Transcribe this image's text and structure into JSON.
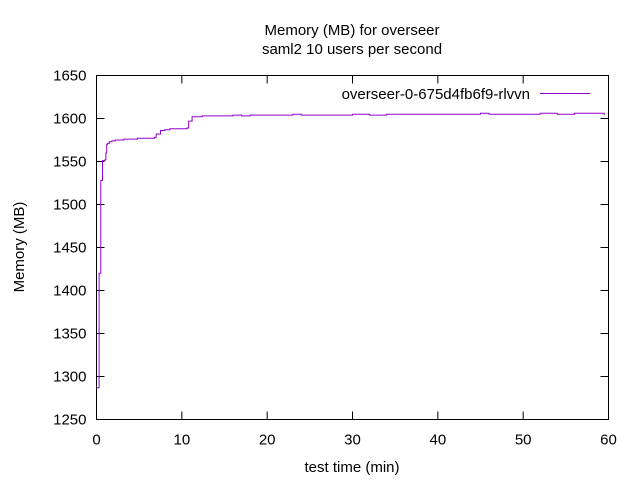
{
  "chart_data": {
    "type": "line",
    "title": "Memory (MB) for overseer",
    "subtitle": "saml2 10 users per second",
    "xlabel": "test time (min)",
    "ylabel": "Memory (MB)",
    "xlim": [
      0,
      60
    ],
    "ylim": [
      1250,
      1650
    ],
    "xticks": [
      0,
      10,
      20,
      30,
      40,
      50,
      60
    ],
    "yticks": [
      1250,
      1300,
      1350,
      1400,
      1450,
      1500,
      1550,
      1600,
      1650
    ],
    "grid": false,
    "legend_position": "top-right",
    "series": [
      {
        "name": "overseer-0-675d4fb6f9-rlvvn",
        "color": "#9400d3",
        "x": [
          0,
          0.1,
          0.2,
          0.3,
          0.5,
          0.6,
          0.7,
          0.8,
          0.9,
          1.0,
          1.1,
          1.2,
          1.3,
          1.5,
          1.8,
          2.2,
          2.7,
          3.2,
          3.7,
          4.2,
          4.8,
          5.5,
          6.2,
          6.8,
          7.0,
          7.2,
          7.5,
          8.0,
          8.6,
          9.2,
          10.0,
          10.6,
          10.8,
          11.2,
          11.8,
          12.4,
          13.0,
          14.0,
          15.0,
          16.0,
          17.0,
          18.0,
          20.0,
          22.0,
          23.0,
          24.0,
          26.0,
          28.0,
          30.0,
          32.0,
          34.0,
          36.0,
          38.0,
          40.0,
          42.0,
          44.0,
          45.0,
          46.0,
          48.0,
          50.0,
          52.0,
          54.0,
          56.0,
          58.0,
          59.0,
          59.5
        ],
        "y": [
          1287,
          1287,
          1287,
          1420,
          1528,
          1528,
          1551,
          1551,
          1551,
          1552,
          1560,
          1570,
          1571,
          1573,
          1574,
          1575,
          1575,
          1576,
          1576,
          1576,
          1577,
          1577,
          1577,
          1578,
          1582,
          1582,
          1586,
          1587,
          1588,
          1588,
          1588,
          1589,
          1597,
          1602,
          1602,
          1603,
          1603,
          1603,
          1603,
          1604,
          1603,
          1604,
          1604,
          1604,
          1605,
          1604,
          1604,
          1604,
          1605,
          1604,
          1605,
          1605,
          1605,
          1605,
          1605,
          1605,
          1606,
          1605,
          1605,
          1605,
          1606,
          1605,
          1606,
          1606,
          1606,
          1604
        ]
      }
    ]
  }
}
